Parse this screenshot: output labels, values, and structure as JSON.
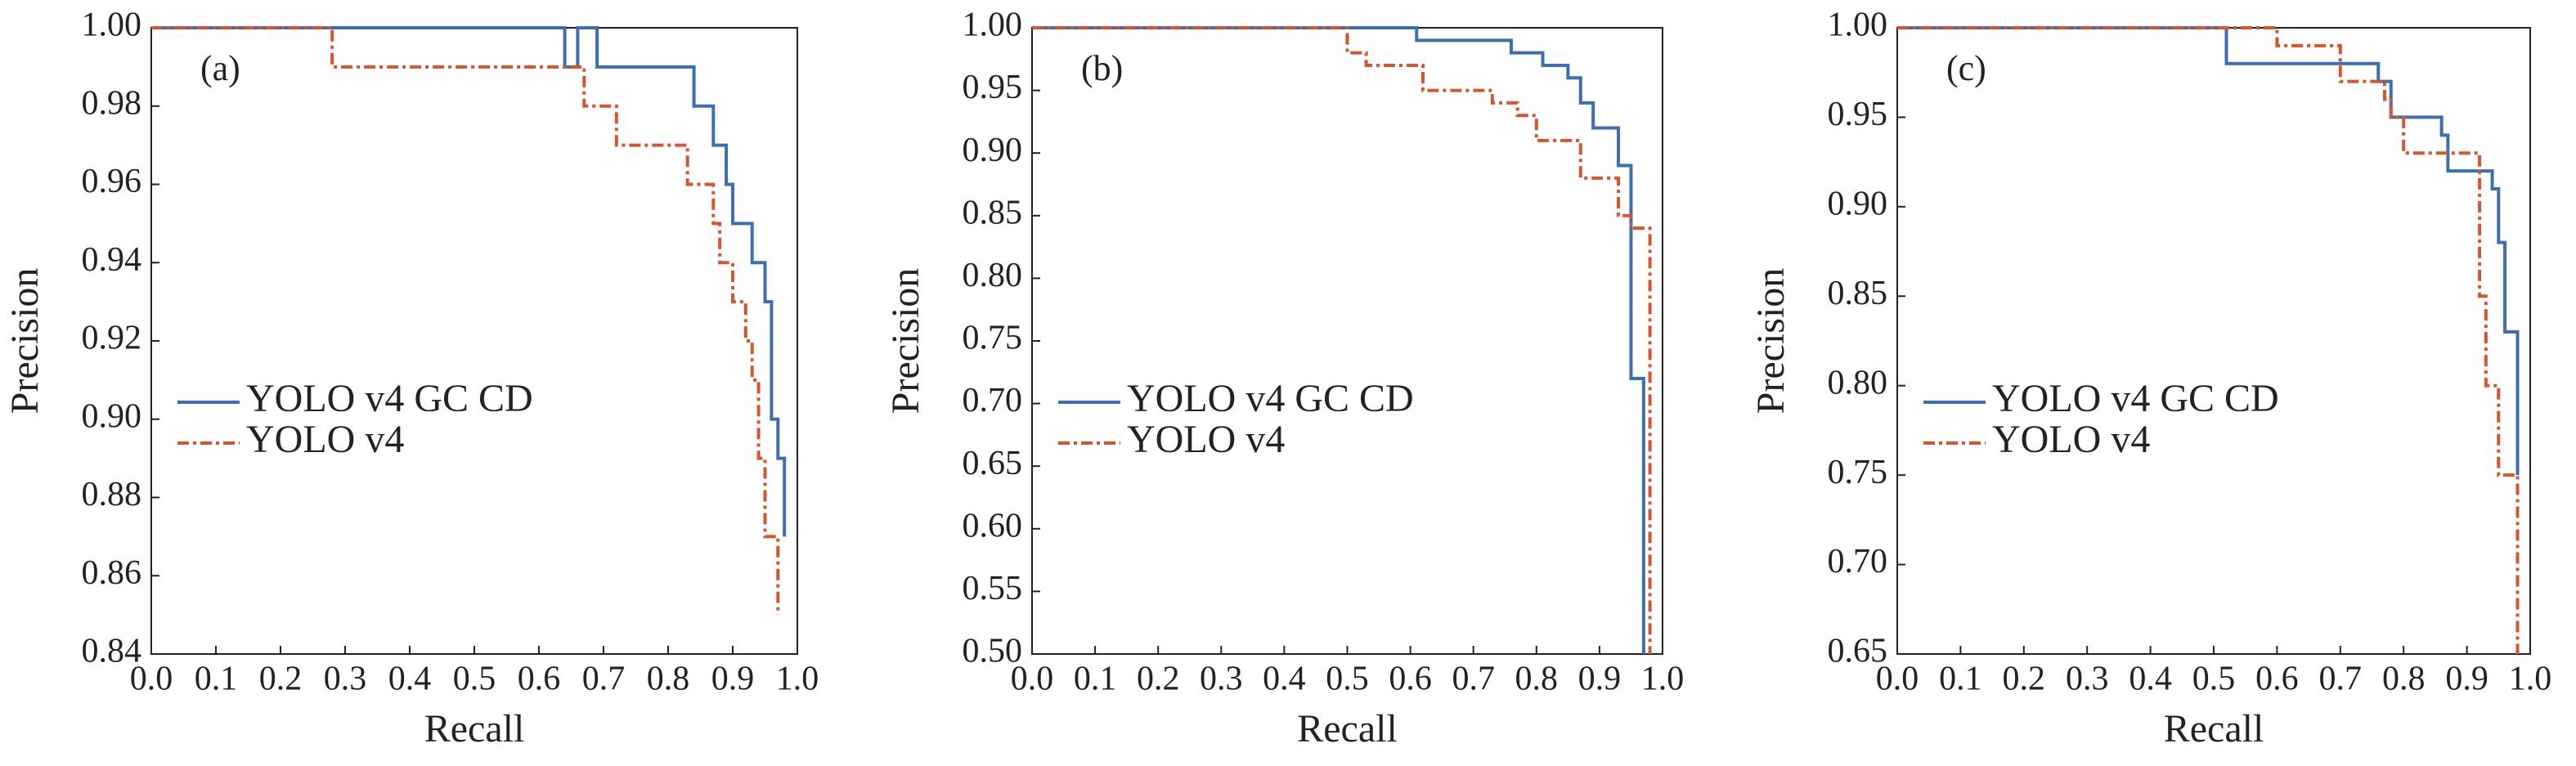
{
  "chart_data": [
    {
      "type": "line",
      "annotation": "(a)",
      "x_label": "Recall",
      "y_label": "Precision",
      "xlim": [
        0,
        1
      ],
      "ylim": [
        0.84,
        1.0
      ],
      "legend": "left",
      "grid": false,
      "xticks": [
        {
          "value": 0,
          "label": "0.0"
        },
        0.1,
        0.2,
        0.3,
        0.4,
        0.5,
        0.6,
        0.7,
        0.8,
        0.9,
        {
          "value": 1,
          "label": "1.0"
        }
      ],
      "yticks": [
        0.84,
        0.86,
        0.88,
        {
          "value": 0.9,
          "label": "0.90"
        },
        0.92,
        0.94,
        0.96,
        0.98,
        {
          "value": 1,
          "label": "1.00"
        }
      ],
      "series": [
        {
          "name": "YOLO v4 GC CD",
          "color": "#3b6fb1",
          "style": "solid",
          "x": [
            0,
            0.64,
            0.64,
            0.66,
            0.66,
            0.69,
            0.69,
            0.84,
            0.84,
            0.87,
            0.87,
            0.89,
            0.89,
            0.9,
            0.9,
            0.93,
            0.93,
            0.95,
            0.95,
            0.96,
            0.96,
            0.97,
            0.97,
            0.98,
            0.98
          ],
          "values": [
            1,
            1,
            0.99,
            0.99,
            1,
            1,
            0.99,
            0.99,
            0.98,
            0.98,
            0.97,
            0.97,
            0.96,
            0.96,
            0.95,
            0.95,
            0.94,
            0.94,
            0.93,
            0.93,
            0.9,
            0.9,
            0.89,
            0.89,
            0.87
          ]
        },
        {
          "name": "YOLO v4",
          "color": "#d6552d",
          "style": "dashdot",
          "x": [
            0,
            0.28,
            0.28,
            0.67,
            0.67,
            0.72,
            0.72,
            0.83,
            0.83,
            0.87,
            0.87,
            0.88,
            0.88,
            0.9,
            0.9,
            0.92,
            0.92,
            0.93,
            0.93,
            0.94,
            0.94,
            0.95,
            0.95,
            0.97,
            0.97
          ],
          "values": [
            1,
            1,
            0.99,
            0.99,
            0.98,
            0.98,
            0.97,
            0.97,
            0.96,
            0.96,
            0.95,
            0.95,
            0.94,
            0.94,
            0.93,
            0.93,
            0.92,
            0.92,
            0.91,
            0.91,
            0.89,
            0.89,
            0.87,
            0.87,
            0.85
          ]
        }
      ]
    },
    {
      "type": "line",
      "annotation": "(b)",
      "x_label": "Recall",
      "y_label": "Precision",
      "xlim": [
        0,
        1
      ],
      "ylim": [
        0.5,
        1.0
      ],
      "legend": "left",
      "grid": false,
      "xticks": [
        {
          "value": 0,
          "label": "0.0"
        },
        0.1,
        0.2,
        0.3,
        0.4,
        0.5,
        0.6,
        0.7,
        0.8,
        0.9,
        {
          "value": 1,
          "label": "1.0"
        }
      ],
      "yticks": [
        {
          "value": 0.5,
          "label": "0.50"
        },
        0.55,
        {
          "value": 0.6,
          "label": "0.60"
        },
        0.65,
        {
          "value": 0.7,
          "label": "0.70"
        },
        0.75,
        {
          "value": 0.8,
          "label": "0.80"
        },
        0.85,
        {
          "value": 0.9,
          "label": "0.90"
        },
        0.95,
        {
          "value": 1,
          "label": "1.00"
        }
      ],
      "series": [
        {
          "name": "YOLO v4 GC CD",
          "color": "#3b6fb1",
          "style": "solid",
          "x": [
            0,
            0.61,
            0.61,
            0.76,
            0.76,
            0.81,
            0.81,
            0.85,
            0.85,
            0.87,
            0.87,
            0.89,
            0.89,
            0.93,
            0.93,
            0.95,
            0.95,
            0.97,
            0.97
          ],
          "values": [
            1,
            1,
            0.99,
            0.99,
            0.98,
            0.98,
            0.97,
            0.97,
            0.96,
            0.96,
            0.94,
            0.94,
            0.92,
            0.92,
            0.89,
            0.89,
            0.72,
            0.72,
            0.5
          ]
        },
        {
          "name": "YOLO v4",
          "color": "#d6552d",
          "style": "dashdot",
          "x": [
            0,
            0.5,
            0.5,
            0.53,
            0.53,
            0.62,
            0.62,
            0.73,
            0.73,
            0.77,
            0.77,
            0.8,
            0.8,
            0.87,
            0.87,
            0.93,
            0.93,
            0.95,
            0.95,
            0.98,
            0.98
          ],
          "values": [
            1,
            1,
            0.98,
            0.98,
            0.97,
            0.97,
            0.95,
            0.95,
            0.94,
            0.94,
            0.93,
            0.93,
            0.91,
            0.91,
            0.88,
            0.88,
            0.85,
            0.85,
            0.84,
            0.84,
            0.5
          ]
        }
      ]
    },
    {
      "type": "line",
      "annotation": "(c)",
      "x_label": "Recall",
      "y_label": "Precision",
      "xlim": [
        0,
        1
      ],
      "ylim": [
        0.65,
        1.0
      ],
      "legend": "left",
      "grid": false,
      "xticks": [
        {
          "value": 0,
          "label": "0.0"
        },
        0.1,
        0.2,
        0.3,
        0.4,
        0.5,
        0.6,
        0.7,
        0.8,
        0.9,
        {
          "value": 1,
          "label": "1.0"
        }
      ],
      "yticks": [
        0.65,
        {
          "value": 0.7,
          "label": "0.70"
        },
        0.75,
        {
          "value": 0.8,
          "label": "0.80"
        },
        0.85,
        {
          "value": 0.9,
          "label": "0.90"
        },
        0.95,
        {
          "value": 1,
          "label": "1.00"
        }
      ],
      "series": [
        {
          "name": "YOLO v4 GC CD",
          "color": "#3b6fb1",
          "style": "solid",
          "x": [
            0,
            0.52,
            0.52,
            0.76,
            0.76,
            0.78,
            0.78,
            0.86,
            0.86,
            0.87,
            0.87,
            0.94,
            0.94,
            0.95,
            0.95,
            0.96,
            0.96,
            0.98,
            0.98
          ],
          "values": [
            1,
            1,
            0.98,
            0.98,
            0.97,
            0.97,
            0.95,
            0.95,
            0.94,
            0.94,
            0.92,
            0.92,
            0.91,
            0.91,
            0.88,
            0.88,
            0.83,
            0.83,
            0.75
          ]
        },
        {
          "name": "YOLO v4",
          "color": "#d6552d",
          "style": "dashdot",
          "x": [
            0,
            0.6,
            0.6,
            0.7,
            0.7,
            0.77,
            0.77,
            0.78,
            0.78,
            0.8,
            0.8,
            0.92,
            0.92,
            0.93,
            0.93,
            0.95,
            0.95,
            0.98,
            0.98
          ],
          "values": [
            1,
            1,
            0.99,
            0.99,
            0.97,
            0.97,
            0.96,
            0.96,
            0.95,
            0.95,
            0.93,
            0.93,
            0.85,
            0.85,
            0.8,
            0.8,
            0.75,
            0.75,
            0.65
          ]
        }
      ]
    }
  ]
}
